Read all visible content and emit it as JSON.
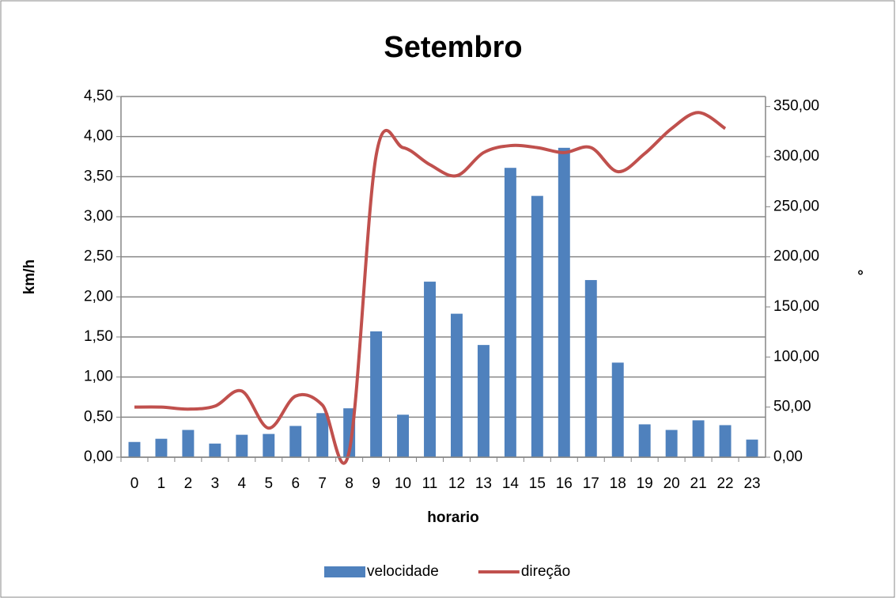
{
  "chart_data": {
    "type": "bar-line",
    "title": "Setembro",
    "x_label": "horario",
    "y_label": "km/h",
    "y2_label": "°",
    "categories": [
      "0",
      "1",
      "2",
      "3",
      "4",
      "5",
      "6",
      "7",
      "8",
      "9",
      "10",
      "11",
      "12",
      "13",
      "14",
      "15",
      "16",
      "17",
      "18",
      "19",
      "20",
      "21",
      "22",
      "23"
    ],
    "series": [
      {
        "name": "velocidade",
        "type": "bar",
        "color": "#4f81bd",
        "axis": "y",
        "values": [
          0.19,
          0.23,
          0.34,
          0.17,
          0.28,
          0.29,
          0.39,
          0.55,
          0.61,
          1.57,
          0.53,
          2.19,
          1.79,
          1.4,
          3.61,
          3.26,
          3.86,
          2.21,
          1.18,
          0.41,
          0.34,
          0.46,
          0.4,
          0.22
        ]
      },
      {
        "name": "direção",
        "type": "line",
        "color": "#c0504d",
        "axis": "y2",
        "smooth": true,
        "values": [
          50,
          50,
          48,
          51,
          66,
          29,
          61,
          52,
          6,
          301,
          309,
          292,
          281,
          304,
          311,
          309,
          304,
          309,
          285,
          303,
          328,
          344,
          328,
          null
        ]
      }
    ],
    "ylim": [
      0,
      4.5
    ],
    "yticks": [
      {
        "value": 0,
        "label": "0,00"
      },
      {
        "value": 0.5,
        "label": "0,50"
      },
      {
        "value": 1,
        "label": "1,00"
      },
      {
        "value": 1.5,
        "label": "1,50"
      },
      {
        "value": 2,
        "label": "2,00"
      },
      {
        "value": 2.5,
        "label": "2,50"
      },
      {
        "value": 3,
        "label": "3,00"
      },
      {
        "value": 3.5,
        "label": "3,50"
      },
      {
        "value": 4,
        "label": "4,00"
      },
      {
        "value": 4.5,
        "label": "4,50"
      }
    ],
    "y2lim": [
      0,
      360
    ],
    "y2ticks": [
      {
        "value": 0,
        "label": "0,00"
      },
      {
        "value": 50,
        "label": "50,00"
      },
      {
        "value": 100,
        "label": "100,00"
      },
      {
        "value": 150,
        "label": "150,00"
      },
      {
        "value": 200,
        "label": "200,00"
      },
      {
        "value": 250,
        "label": "250,00"
      },
      {
        "value": 300,
        "label": "300,00"
      },
      {
        "value": 350,
        "label": "350,00"
      }
    ],
    "grid": true,
    "legend": "bottom"
  }
}
